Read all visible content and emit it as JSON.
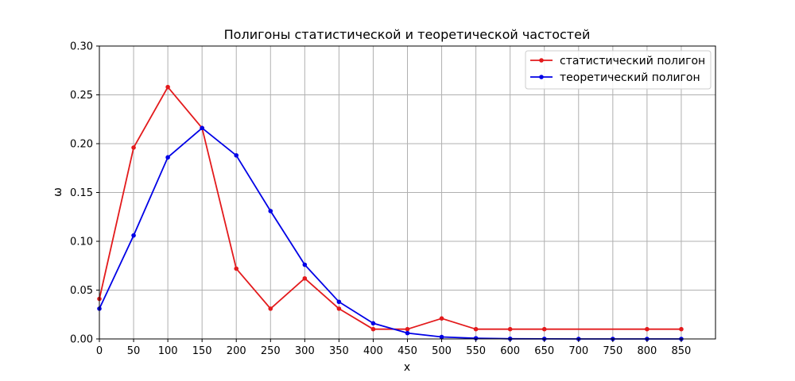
{
  "chart_data": {
    "type": "line",
    "title": "Полигоны статистической и теоретической частостей",
    "xlabel": "x",
    "ylabel": "ω",
    "xlim": [
      0,
      900
    ],
    "ylim": [
      0,
      0.3
    ],
    "x_ticks": [
      0,
      50,
      100,
      150,
      200,
      250,
      300,
      350,
      400,
      450,
      500,
      550,
      600,
      650,
      700,
      750,
      800,
      850
    ],
    "y_ticks": [
      0.0,
      0.05,
      0.1,
      0.15,
      0.2,
      0.25,
      0.3
    ],
    "y_tick_labels": [
      "0.00",
      "0.05",
      "0.10",
      "0.15",
      "0.20",
      "0.25",
      "0.30"
    ],
    "grid": true,
    "legend_position": "top-right",
    "series": [
      {
        "name": "статистический полигон",
        "color": "#e31a1c",
        "x": [
          0,
          50,
          100,
          150,
          200,
          250,
          300,
          350,
          400,
          450,
          500,
          550,
          600,
          650,
          800,
          850
        ],
        "y": [
          0.041,
          0.196,
          0.258,
          0.216,
          0.072,
          0.031,
          0.062,
          0.031,
          0.01,
          0.01,
          0.021,
          0.01,
          0.01,
          0.01,
          0.01,
          0.01
        ]
      },
      {
        "name": "теоретический полигон",
        "color": "#0000e6",
        "x": [
          0,
          50,
          100,
          150,
          200,
          250,
          300,
          350,
          400,
          450,
          500,
          550,
          600,
          650,
          700,
          750,
          800,
          850
        ],
        "y": [
          0.031,
          0.106,
          0.186,
          0.216,
          0.188,
          0.131,
          0.076,
          0.038,
          0.016,
          0.006,
          0.002,
          0.0007,
          0.0002,
          0.0001,
          0.0,
          0.0,
          0.0,
          0.0
        ]
      }
    ]
  }
}
